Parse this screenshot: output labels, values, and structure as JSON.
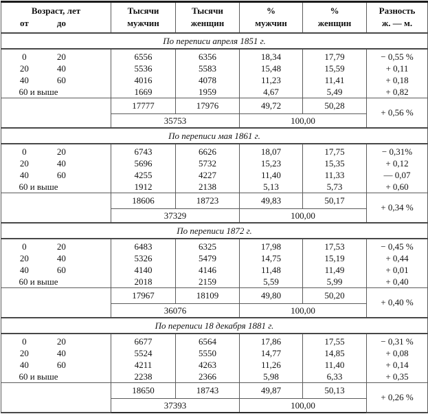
{
  "palette": {
    "background": "#ffffff",
    "text": "#111111",
    "border": "#555555"
  },
  "table": {
    "header": {
      "age_title": "Возраст, лет",
      "age_from": "от",
      "age_to": "до",
      "cols": [
        {
          "line1": "Тысячи",
          "line2": "мужчин"
        },
        {
          "line1": "Тысячи",
          "line2": "женщин"
        },
        {
          "line1": "%",
          "line2": "мужчин"
        },
        {
          "line1": "%",
          "line2": "женщин"
        },
        {
          "line1": "Разность",
          "line2": "ж. — м."
        }
      ]
    },
    "sections": [
      {
        "title": "По переписи апреля 1851 г.",
        "rows": [
          {
            "from": "0",
            "to": "20",
            "men": "6556",
            "women": "6356",
            "men_pct": "18,34",
            "women_pct": "17,79",
            "diff": "− 0,55 %"
          },
          {
            "from": "20",
            "to": "40",
            "men": "5536",
            "women": "5583",
            "men_pct": "15,48",
            "women_pct": "15,59",
            "diff": "+ 0,11"
          },
          {
            "from": "40",
            "to": "60",
            "men": "4016",
            "women": "4078",
            "men_pct": "11,23",
            "women_pct": "11,41",
            "diff": "+ 0,18"
          },
          {
            "from": "60 и выше",
            "to": "",
            "men": "1669",
            "women": "1959",
            "men_pct": "4,67",
            "women_pct": "5,49",
            "diff": "+ 0,82"
          }
        ],
        "totals": {
          "men": "17777",
          "women": "17976",
          "men_pct": "49,72",
          "women_pct": "50,28",
          "diff": "+ 0,56 %",
          "total": "35753",
          "total_pct": "100,00"
        }
      },
      {
        "title": "По переписи мая 1861 г.",
        "rows": [
          {
            "from": "0",
            "to": "20",
            "men": "6743",
            "women": "6626",
            "men_pct": "18,07",
            "women_pct": "17,75",
            "diff": "− 0,31%"
          },
          {
            "from": "20",
            "to": "40",
            "men": "5696",
            "women": "5732",
            "men_pct": "15,23",
            "women_pct": "15,35",
            "diff": "+ 0,12"
          },
          {
            "from": "40",
            "to": "60",
            "men": "4255",
            "women": "4227",
            "men_pct": "11,40",
            "women_pct": "11,33",
            "diff": "— 0,07"
          },
          {
            "from": "60 и выше",
            "to": "",
            "men": "1912",
            "women": "2138",
            "men_pct": "5,13",
            "women_pct": "5,73",
            "diff": "+ 0,60"
          }
        ],
        "totals": {
          "men": "18606",
          "women": "18723",
          "men_pct": "49,83",
          "women_pct": "50,17",
          "diff": "+ 0,34 %",
          "total": "37329",
          "total_pct": "100,00"
        }
      },
      {
        "title": "По переписи 1872 г.",
        "rows": [
          {
            "from": "0",
            "to": "20",
            "men": "6483",
            "women": "6325",
            "men_pct": "17,98",
            "women_pct": "17,53",
            "diff": "− 0,45 %"
          },
          {
            "from": "20",
            "to": "40",
            "men": "5326",
            "women": "5479",
            "men_pct": "14,75",
            "women_pct": "15,19",
            "diff": "+ 0,44"
          },
          {
            "from": "40",
            "to": "60",
            "men": "4140",
            "women": "4146",
            "men_pct": "11,48",
            "women_pct": "11,49",
            "diff": "+ 0,01"
          },
          {
            "from": "60 и выше",
            "to": "",
            "men": "2018",
            "women": "2159",
            "men_pct": "5,59",
            "women_pct": "5,99",
            "diff": "+ 0,40"
          }
        ],
        "totals": {
          "men": "17967",
          "women": "18109",
          "men_pct": "49,80",
          "women_pct": "50,20",
          "diff": "+ 0,40 %",
          "total": "36076",
          "total_pct": "100,00"
        }
      },
      {
        "title": "По переписи 18 декабря 1881 г.",
        "rows": [
          {
            "from": "0",
            "to": "20",
            "men": "6677",
            "women": "6564",
            "men_pct": "17,86",
            "women_pct": "17,55",
            "diff": "− 0,31 %"
          },
          {
            "from": "20",
            "to": "40",
            "men": "5524",
            "women": "5550",
            "men_pct": "14,77",
            "women_pct": "14,85",
            "diff": "+ 0,08"
          },
          {
            "from": "40",
            "to": "60",
            "men": "4211",
            "women": "4263",
            "men_pct": "11,26",
            "women_pct": "11,40",
            "diff": "+ 0,14"
          },
          {
            "from": "60 и выше",
            "to": "",
            "men": "2238",
            "women": "2366",
            "men_pct": "5,98",
            "women_pct": "6,33",
            "diff": "+ 0,35"
          }
        ],
        "totals": {
          "men": "18650",
          "women": "18743",
          "men_pct": "49,87",
          "women_pct": "50,13",
          "diff": "+ 0,26 %",
          "total": "37393",
          "total_pct": "100,00"
        }
      }
    ]
  }
}
